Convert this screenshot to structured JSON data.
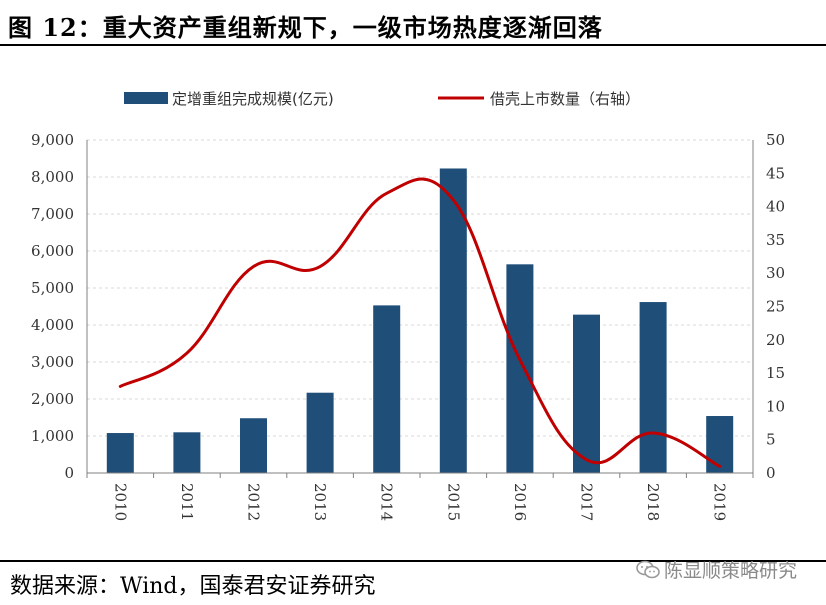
{
  "title": "图 12：重大资产重组新规下，一级市场热度逐渐回落",
  "source": "数据来源：Wind，国泰君安证券研究",
  "watermark": "陈显顺策略研究",
  "colors": {
    "bar": "#1f4e79",
    "line": "#c00000",
    "grid": "#d9d9d9",
    "axis": "#808080"
  },
  "chart_data": {
    "type": "bar+line",
    "categories": [
      "2010",
      "2011",
      "2012",
      "2013",
      "2014",
      "2015",
      "2016",
      "2017",
      "2018",
      "2019"
    ],
    "series": [
      {
        "name": "定增重组完成规模(亿元)",
        "type": "bar",
        "axis": "left",
        "values": [
          1080,
          1100,
          1480,
          2170,
          4530,
          8230,
          5640,
          4280,
          4620,
          1540
        ]
      },
      {
        "name": "借壳上市数量（右轴）",
        "type": "line",
        "axis": "right",
        "smooth": true,
        "values": [
          13,
          18,
          31,
          31,
          42,
          41,
          17,
          2,
          6,
          1
        ]
      }
    ],
    "y_left": {
      "min": 0,
      "max": 9000,
      "step": 1000,
      "tick_labels": [
        "0",
        "1,000",
        "2,000",
        "3,000",
        "4,000",
        "5,000",
        "6,000",
        "7,000",
        "8,000",
        "9,000"
      ]
    },
    "y_right": {
      "min": 0,
      "max": 50,
      "step": 5,
      "tick_labels": [
        "0",
        "5",
        "10",
        "15",
        "20",
        "25",
        "30",
        "35",
        "40",
        "45",
        "50"
      ]
    },
    "legend_position": "top-center",
    "grid": "dashed-horizontal"
  }
}
